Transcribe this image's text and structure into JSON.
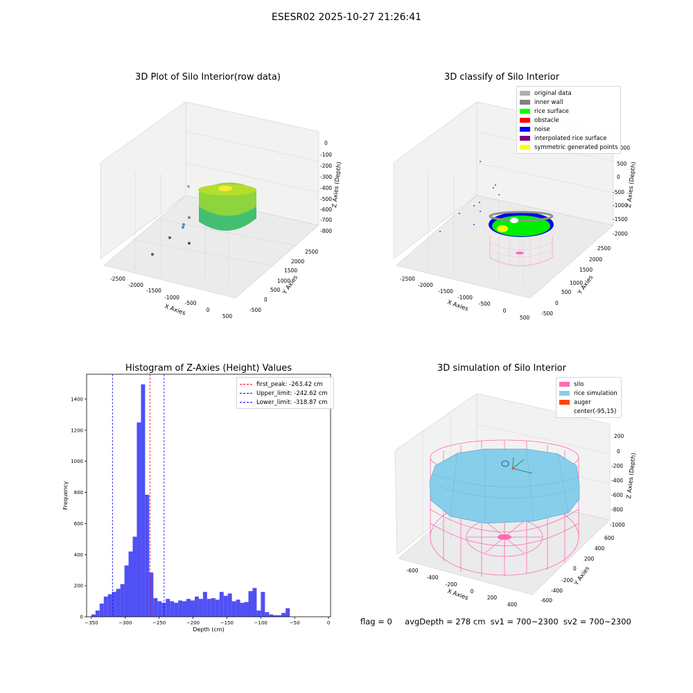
{
  "suptitle": "ESESR02 2025-10-27 21:26:41",
  "panels": {
    "raw": {
      "title": "3D Plot of Silo Interior(row data)",
      "xlabel": "X Axies",
      "ylabel": "Y Axies",
      "zlabel": "Z Axies (Depth)",
      "xticks": [
        "-2500",
        "-2000",
        "-1500",
        "-1000",
        "-500",
        "0",
        "500"
      ],
      "yticks": [
        "-500",
        "0",
        "500",
        "1000",
        "1500",
        "2000",
        "2500"
      ],
      "zticks": [
        "0",
        "-100",
        "-200",
        "-300",
        "-400",
        "-500",
        "-600",
        "-700",
        "-800"
      ]
    },
    "classify": {
      "title": "3D classify of Silo Interior",
      "xlabel": "X Axies",
      "ylabel": "Y Axies",
      "zlabel": "Z Axies (Depth)",
      "xticks": [
        "-2500",
        "-2000",
        "-1500",
        "-1000",
        "-500",
        "0",
        "500"
      ],
      "yticks": [
        "-500",
        "0",
        "500",
        "1000",
        "1500",
        "2000",
        "2500"
      ],
      "zticks": [
        "1000",
        "500",
        "0",
        "-500",
        "-1000",
        "-1500",
        "-2000"
      ],
      "legend": [
        {
          "label": "original data",
          "color": "#b0b0b0"
        },
        {
          "label": "inner wall",
          "color": "#808080"
        },
        {
          "label": "rice surface",
          "color": "#00ff00"
        },
        {
          "label": "obstacle",
          "color": "#ff0000"
        },
        {
          "label": "noise",
          "color": "#0000ff"
        },
        {
          "label": "interpolated rice surface",
          "color": "#800080"
        },
        {
          "label": "symmetric generated points",
          "color": "#ffff00"
        }
      ]
    },
    "simulation": {
      "title": "3D simulation of Silo Interior",
      "xlabel": "X Axies",
      "ylabel": "Y Axies",
      "zlabel": "Z Axies (Depth)",
      "xticks": [
        "-600",
        "-400",
        "-200",
        "0",
        "200",
        "400"
      ],
      "yticks": [
        "-600",
        "-400",
        "-200",
        "0",
        "200",
        "400",
        "600"
      ],
      "zticks": [
        "200",
        "0",
        "-200",
        "-400",
        "-600",
        "-800",
        "-1000"
      ],
      "legend": [
        {
          "label": "silo",
          "color": "#ff69b4"
        },
        {
          "label": "rice simulation",
          "color": "#87ceeb"
        },
        {
          "label": "auger",
          "color": "#ff4500"
        },
        {
          "label": "center(-95,15)",
          "color": ""
        }
      ]
    }
  },
  "chart_data": {
    "type": "bar",
    "title": "Histogram of Z-Axies (Height) Values",
    "xlabel": "Depth (cm)",
    "ylabel": "Frequency",
    "xlim": [
      -357,
      3
    ],
    "ylim": [
      0,
      1560
    ],
    "xticks": [
      -350,
      -300,
      -250,
      -200,
      -150,
      -100,
      -50,
      0
    ],
    "yticks": [
      0,
      200,
      400,
      600,
      800,
      1000,
      1200,
      1400
    ],
    "bar_color": "#5050f5",
    "bin_start": -350,
    "bin_width": 6.1,
    "values": [
      15,
      40,
      85,
      130,
      145,
      160,
      180,
      210,
      330,
      420,
      515,
      1250,
      1495,
      785,
      285,
      120,
      100,
      90,
      115,
      100,
      90,
      105,
      100,
      115,
      105,
      130,
      115,
      160,
      115,
      120,
      110,
      160,
      135,
      150,
      100,
      110,
      90,
      95,
      165,
      185,
      40,
      160,
      30,
      15,
      10,
      10,
      25,
      55
    ],
    "vlines": [
      {
        "x": -263.42,
        "color": "#ff0000",
        "label": "first_peak: -263.42 cm"
      },
      {
        "x": -242.62,
        "color": "#0000ff",
        "label": "Upper_limit: -242.62 cm"
      },
      {
        "x": -318.87,
        "color": "#0000ff",
        "label": "Lower_limit: -318.87 cm"
      }
    ],
    "legend_position": "top-right"
  },
  "status": {
    "flag": "flag = 0",
    "avg_depth": "avgDepth = 278 cm",
    "sv1": "sv1 = 700~2300",
    "sv2": "sv2 = 700~2300"
  }
}
